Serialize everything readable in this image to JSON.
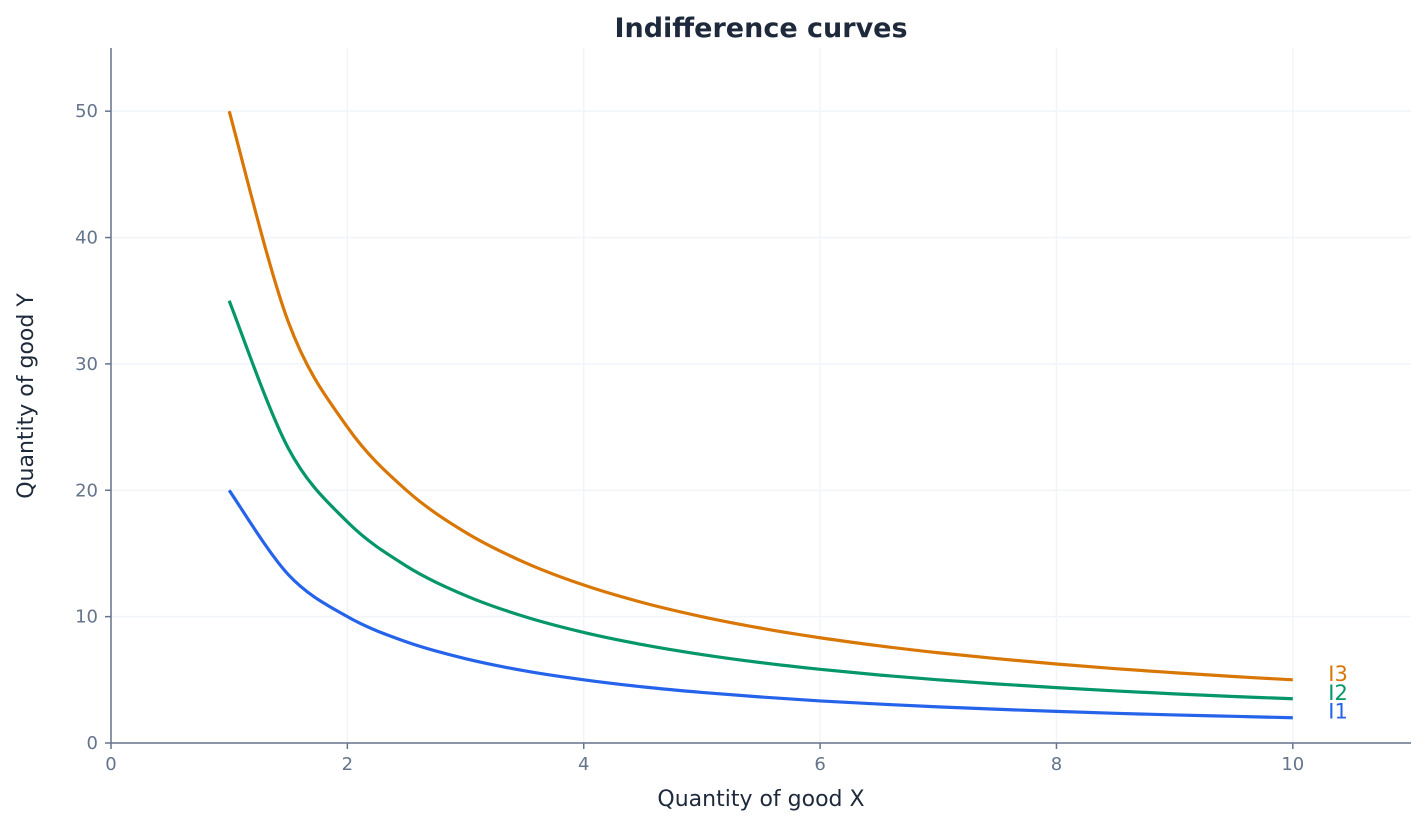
{
  "chart_data": {
    "type": "line",
    "title": "Indifference curves",
    "xlabel": "Quantity of good X",
    "ylabel": "Quantity of good Y",
    "xlim": [
      0,
      11
    ],
    "ylim": [
      0,
      55
    ],
    "xticks": [
      0,
      2,
      4,
      6,
      8,
      10
    ],
    "yticks": [
      0,
      10,
      20,
      30,
      40,
      50
    ],
    "grid": true,
    "legend": "none (inline labels at right end of curves)",
    "x": [
      1,
      1.5,
      2,
      2.5,
      3,
      3.5,
      4,
      4.5,
      5,
      5.5,
      6,
      6.5,
      7,
      7.5,
      8,
      8.5,
      9,
      9.5,
      10
    ],
    "series": [
      {
        "name": "I1",
        "color": "#2563eb",
        "values": [
          20,
          13.33,
          10,
          8,
          6.67,
          5.71,
          5,
          4.44,
          4,
          3.64,
          3.33,
          3.08,
          2.86,
          2.67,
          2.5,
          2.35,
          2.22,
          2.11,
          2
        ]
      },
      {
        "name": "I2",
        "color": "#059669",
        "values": [
          35,
          23.33,
          17.5,
          14,
          11.67,
          10,
          8.75,
          7.78,
          7,
          6.36,
          5.83,
          5.38,
          5,
          4.67,
          4.38,
          4.12,
          3.89,
          3.68,
          3.5
        ]
      },
      {
        "name": "I3",
        "color": "#d97706",
        "values": [
          50,
          33.33,
          25,
          20,
          16.67,
          14.29,
          12.5,
          11.11,
          10,
          9.09,
          8.33,
          7.69,
          7.14,
          6.67,
          6.25,
          5.88,
          5.56,
          5.26,
          5
        ]
      }
    ]
  }
}
